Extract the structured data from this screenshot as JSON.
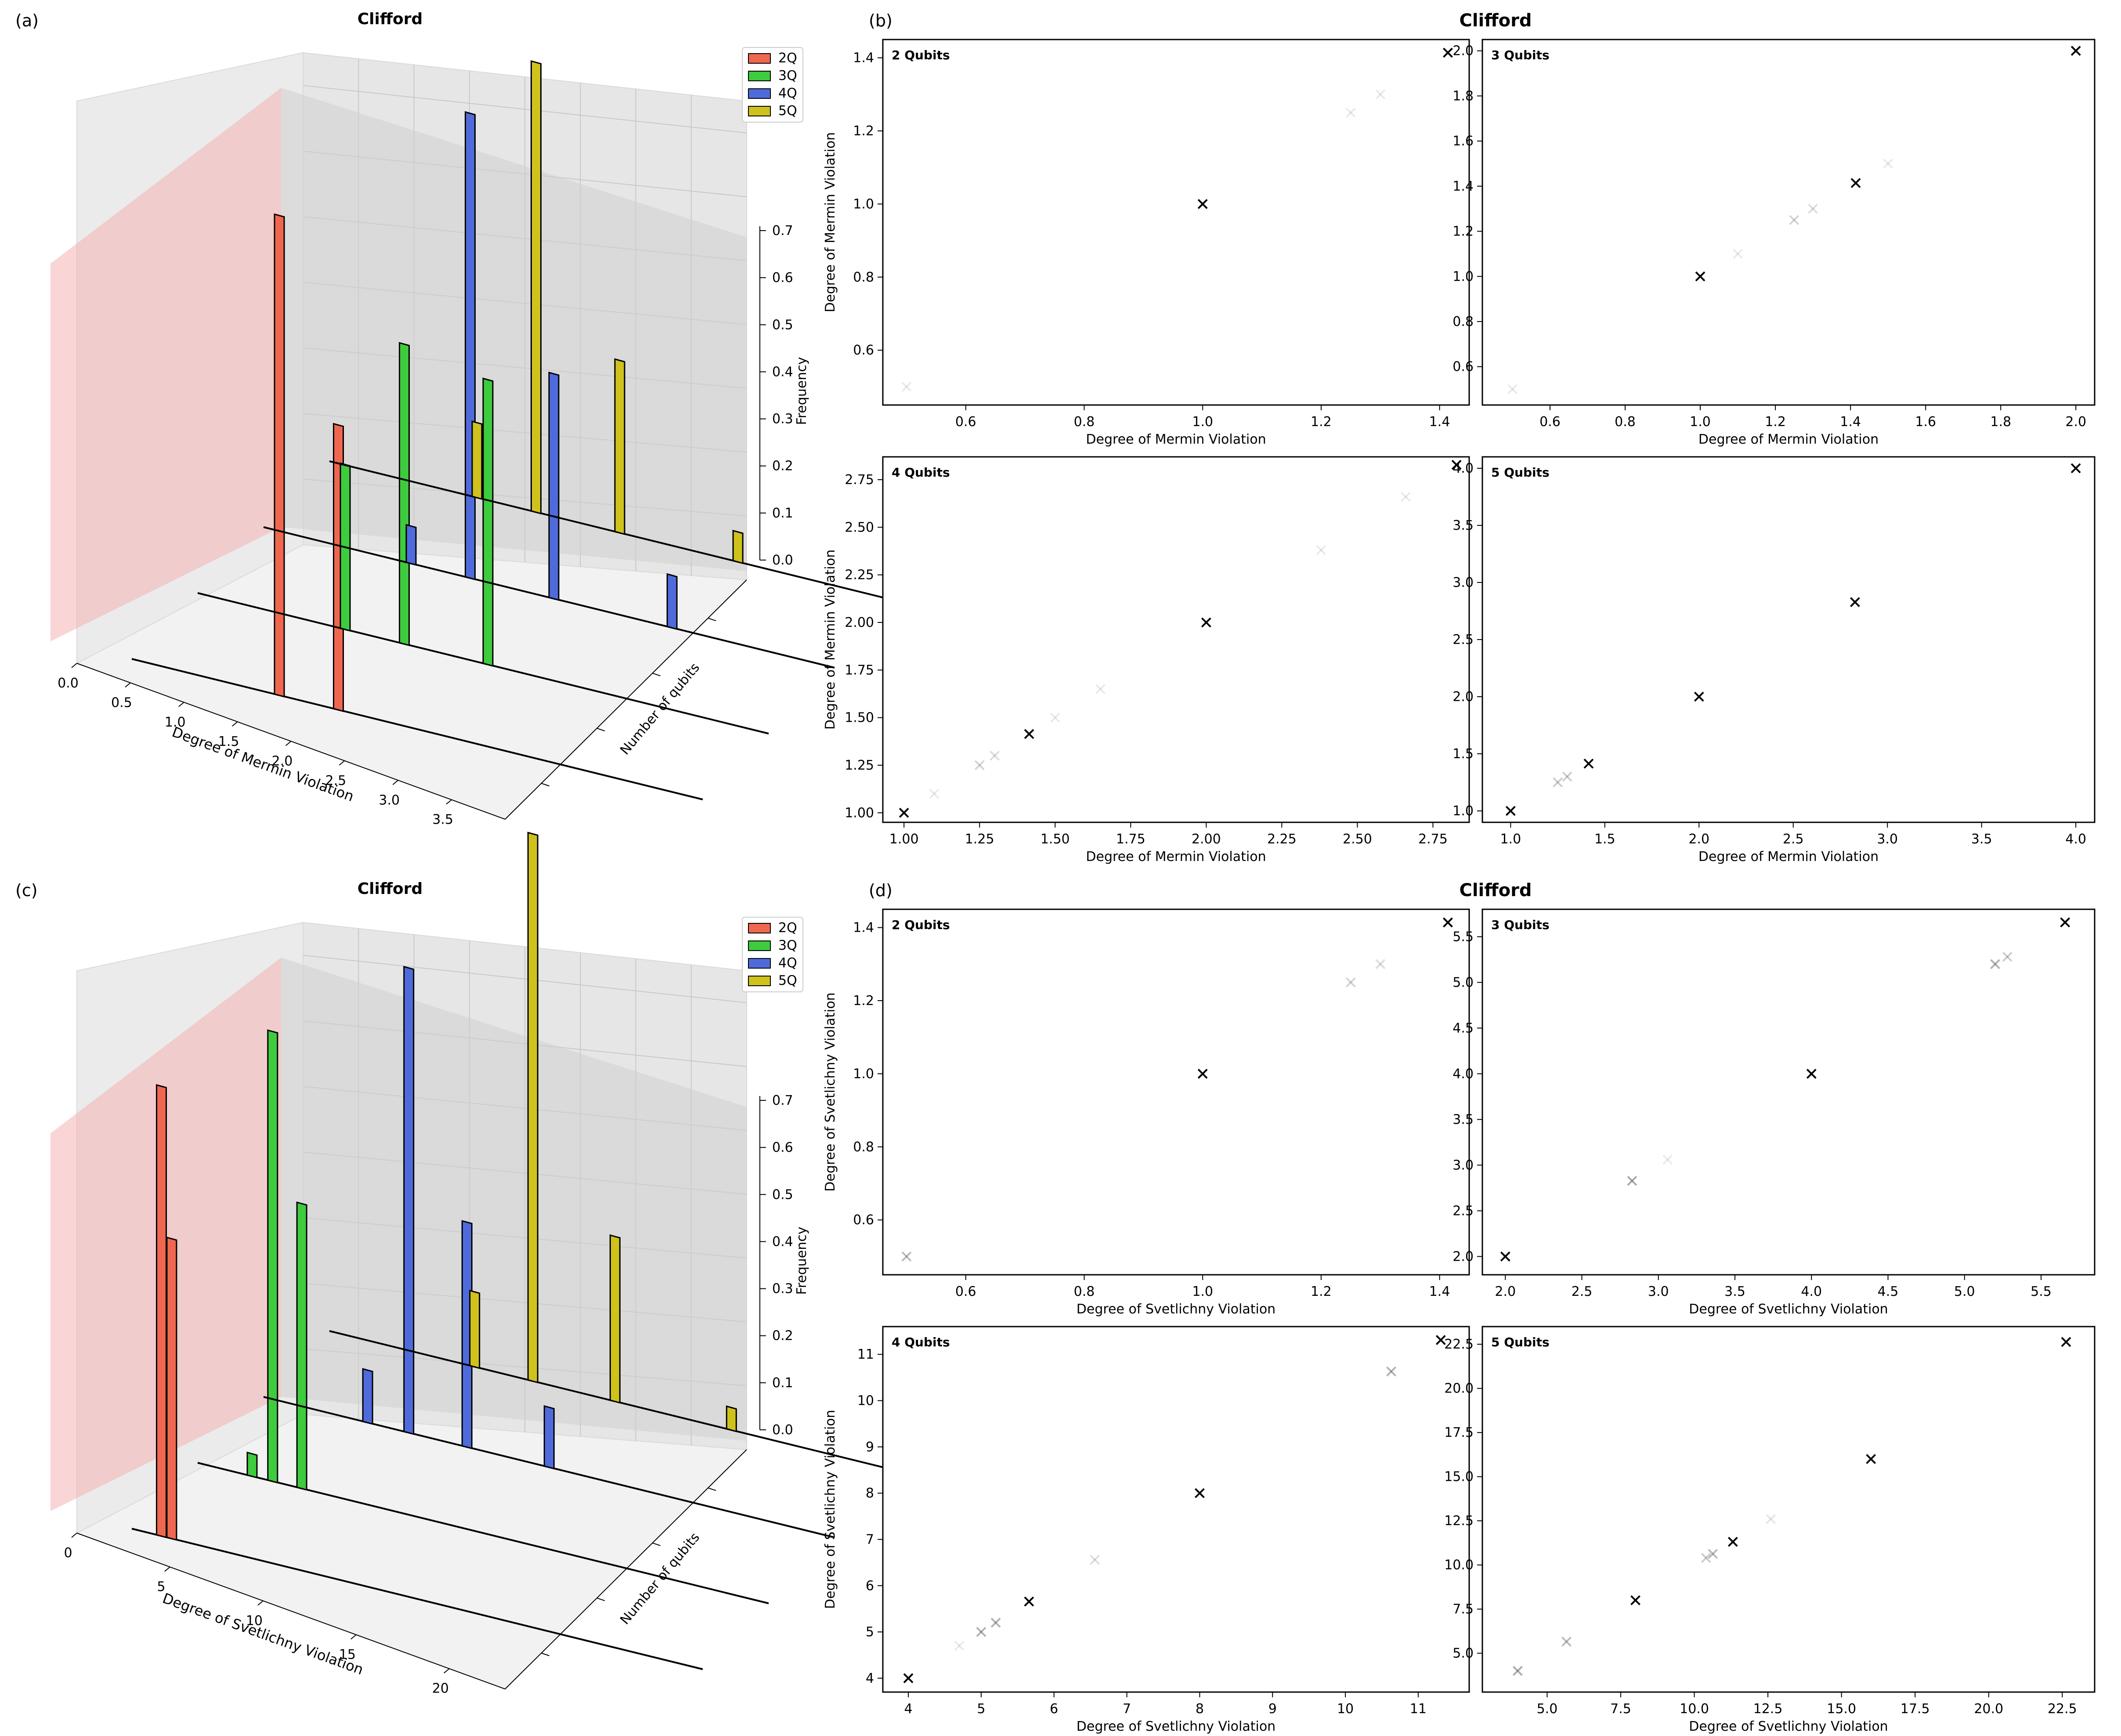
{
  "colors": {
    "q2": "#f0674f",
    "q3": "#3ecb3e",
    "q4": "#4f6bdb",
    "q5": "#cfc21c",
    "classical_plane": "#f4b2b2",
    "pane": "#f2f2f2",
    "shadow": "#cfcfcf"
  },
  "chart_data": [
    {
      "panel": "(a)",
      "type": "bar3d",
      "title": "Clifford",
      "xlabel": "Degree of Mermin Violation",
      "ylabel": "Number of qubits",
      "zlabel": "Frequency",
      "xlim": [
        0,
        4
      ],
      "zlim": [
        0,
        0.75
      ],
      "x_ticks": [
        "0.0",
        "0.5",
        "1.0",
        "1.5",
        "2.0",
        "2.5",
        "3.0",
        "3.5"
      ],
      "z_ticks": [
        "0.0",
        "0.1",
        "0.2",
        "0.3",
        "0.4",
        "0.5",
        "0.6",
        "0.7"
      ],
      "legend": [
        "2Q",
        "3Q",
        "4Q",
        "5Q"
      ],
      "classical_bound": 1.0,
      "series": [
        {
          "name": "2Q",
          "x": [
            1.0,
            1.414
          ],
          "values": [
            0.64,
            0.38
          ]
        },
        {
          "name": "3Q",
          "x": [
            1.0,
            1.414,
            2.0
          ],
          "values": [
            0.22,
            0.4,
            0.38
          ]
        },
        {
          "name": "4Q",
          "x": [
            1.0,
            1.414,
            2.0,
            2.828
          ],
          "values": [
            0.05,
            0.62,
            0.3,
            0.07
          ]
        },
        {
          "name": "5Q",
          "x": [
            1.0,
            1.414,
            2.0,
            2.828,
            4.0
          ],
          "values": [
            0.1,
            0.6,
            0.23,
            0.04,
            0.01
          ]
        }
      ]
    },
    {
      "panel": "(b)",
      "type": "scatter",
      "title": "Clifford",
      "subplots": [
        {
          "label": "2 Qubits",
          "xlabel": "Degree of Mermin Violation",
          "ylabel": "Degree of Mermin Violation",
          "xlim": [
            0.46,
            1.45
          ],
          "ylim": [
            0.45,
            1.45
          ],
          "x_ticks": [
            "0.6",
            "0.8",
            "1.0",
            "1.2",
            "1.4"
          ],
          "y_ticks": [
            "0.6",
            "0.8",
            "1.0",
            "1.2",
            "1.4"
          ],
          "points": [
            [
              0.5,
              0.5,
              0.1
            ],
            [
              1.0,
              1.0,
              1.0
            ],
            [
              1.25,
              1.25,
              0.08
            ],
            [
              1.3,
              1.3,
              0.06
            ],
            [
              1.414,
              1.414,
              1.0
            ]
          ]
        },
        {
          "label": "3 Qubits",
          "xlabel": "Degree of Mermin Violation",
          "ylabel": "",
          "xlim": [
            0.42,
            2.05
          ],
          "ylim": [
            0.43,
            2.05
          ],
          "x_ticks": [
            "0.6",
            "0.8",
            "1.0",
            "1.2",
            "1.4",
            "1.6",
            "1.8",
            "2.0"
          ],
          "y_ticks": [
            "0.6",
            "0.8",
            "1.0",
            "1.2",
            "1.4",
            "1.6",
            "1.8",
            "2.0"
          ],
          "points": [
            [
              0.5,
              0.5,
              0.08
            ],
            [
              1.0,
              1.0,
              1.0
            ],
            [
              1.1,
              1.1,
              0.06
            ],
            [
              1.25,
              1.25,
              0.25
            ],
            [
              1.3,
              1.3,
              0.2
            ],
            [
              1.414,
              1.414,
              1.0
            ],
            [
              1.5,
              1.5,
              0.08
            ],
            [
              2.0,
              2.0,
              1.0
            ]
          ]
        },
        {
          "label": "4 Qubits",
          "xlabel": "Degree of Mermin Violation",
          "ylabel": "Degree of Mermin Violation",
          "xlim": [
            0.93,
            2.87
          ],
          "ylim": [
            0.95,
            2.87
          ],
          "x_ticks": [
            "1.00",
            "1.25",
            "1.50",
            "1.75",
            "2.00",
            "2.25",
            "2.50",
            "2.75"
          ],
          "y_ticks": [
            "1.00",
            "1.25",
            "1.50",
            "1.75",
            "2.00",
            "2.25",
            "2.50",
            "2.75"
          ],
          "points": [
            [
              1.0,
              1.0,
              1.0
            ],
            [
              1.1,
              1.1,
              0.06
            ],
            [
              1.25,
              1.25,
              0.25
            ],
            [
              1.3,
              1.3,
              0.2
            ],
            [
              1.414,
              1.414,
              1.0
            ],
            [
              1.5,
              1.5,
              0.08
            ],
            [
              1.65,
              1.65,
              0.05
            ],
            [
              2.0,
              2.0,
              1.0
            ],
            [
              2.38,
              2.38,
              0.05
            ],
            [
              2.66,
              2.66,
              0.05
            ],
            [
              2.828,
              2.828,
              1.0
            ]
          ]
        },
        {
          "label": "5 Qubits",
          "xlabel": "Degree of Mermin Violation",
          "ylabel": "",
          "xlim": [
            0.85,
            4.1
          ],
          "ylim": [
            0.9,
            4.1
          ],
          "x_ticks": [
            "1.0",
            "1.5",
            "2.0",
            "2.5",
            "3.0",
            "3.5",
            "4.0"
          ],
          "y_ticks": [
            "1.0",
            "1.5",
            "2.0",
            "2.5",
            "3.0",
            "3.5",
            "4.0"
          ],
          "points": [
            [
              1.0,
              1.0,
              1.0
            ],
            [
              1.25,
              1.25,
              0.3
            ],
            [
              1.3,
              1.3,
              0.3
            ],
            [
              1.414,
              1.414,
              1.0
            ],
            [
              2.0,
              2.0,
              1.0
            ],
            [
              2.828,
              2.828,
              1.0
            ],
            [
              4.0,
              4.0,
              1.0
            ]
          ]
        }
      ]
    },
    {
      "panel": "(c)",
      "type": "bar3d",
      "title": "Clifford",
      "xlabel": "Degree of Svetlichny Violation",
      "ylabel": "Number of qubits",
      "zlabel": "Frequency",
      "xlim": [
        0,
        23
      ],
      "zlim": [
        0,
        0.75
      ],
      "x_ticks": [
        "0",
        "5",
        "10",
        "15",
        "20"
      ],
      "z_ticks": [
        "0.0",
        "0.1",
        "0.2",
        "0.3",
        "0.4",
        "0.5",
        "0.6",
        "0.7"
      ],
      "legend": [
        "2Q",
        "3Q",
        "4Q",
        "5Q"
      ],
      "classical_bound": 11.3,
      "series": [
        {
          "name": "2Q",
          "x": [
            1.0,
            1.414
          ],
          "values": [
            0.6,
            0.4
          ]
        },
        {
          "name": "3Q",
          "x": [
            2.0,
            2.828,
            4.0
          ],
          "values": [
            0.03,
            0.6,
            0.38
          ]
        },
        {
          "name": "4Q",
          "x": [
            4.0,
            5.657,
            8.0,
            11.31
          ],
          "values": [
            0.07,
            0.62,
            0.3,
            0.08
          ]
        },
        {
          "name": "5Q",
          "x": [
            5.657,
            8.0,
            11.31,
            16.0,
            22.63
          ],
          "values": [
            0.1,
            0.73,
            0.22,
            0.03,
            0.01
          ]
        }
      ]
    },
    {
      "panel": "(d)",
      "type": "scatter",
      "title": "Clifford",
      "subplots": [
        {
          "label": "2 Qubits",
          "xlabel": "Degree of Svetlichny Violation",
          "ylabel": "Degree of Svetlichny Violation",
          "xlim": [
            0.46,
            1.45
          ],
          "ylim": [
            0.45,
            1.45
          ],
          "x_ticks": [
            "0.6",
            "0.8",
            "1.0",
            "1.2",
            "1.4"
          ],
          "y_ticks": [
            "0.6",
            "0.8",
            "1.0",
            "1.2",
            "1.4"
          ],
          "points": [
            [
              0.5,
              0.5,
              0.4
            ],
            [
              1.0,
              1.0,
              1.0
            ],
            [
              1.25,
              1.25,
              0.25
            ],
            [
              1.3,
              1.3,
              0.2
            ],
            [
              1.414,
              1.414,
              1.0
            ]
          ]
        },
        {
          "label": "3 Qubits",
          "xlabel": "Degree of Svetlichny Violation",
          "ylabel": "",
          "xlim": [
            1.85,
            5.85
          ],
          "ylim": [
            1.8,
            5.8
          ],
          "x_ticks": [
            "2.0",
            "2.5",
            "3.0",
            "3.5",
            "4.0",
            "4.5",
            "5.0",
            "5.5"
          ],
          "y_ticks": [
            "2.0",
            "2.5",
            "3.0",
            "3.5",
            "4.0",
            "4.5",
            "5.0",
            "5.5"
          ],
          "points": [
            [
              2.0,
              2.0,
              1.0
            ],
            [
              2.828,
              2.828,
              0.5
            ],
            [
              3.06,
              3.06,
              0.12
            ],
            [
              4.0,
              4.0,
              1.0
            ],
            [
              5.2,
              5.2,
              0.45
            ],
            [
              5.28,
              5.28,
              0.3
            ],
            [
              5.657,
              5.657,
              1.0
            ]
          ]
        },
        {
          "label": "4 Qubits",
          "xlabel": "Degree of Svetlichny Violation",
          "ylabel": "Degree of Svetlichny Violation",
          "xlim": [
            3.65,
            11.7
          ],
          "ylim": [
            3.7,
            11.6
          ],
          "x_ticks": [
            "4",
            "5",
            "6",
            "7",
            "8",
            "9",
            "10",
            "11"
          ],
          "y_ticks": [
            "4",
            "5",
            "6",
            "7",
            "8",
            "9",
            "10",
            "11"
          ],
          "points": [
            [
              4.0,
              4.0,
              1.0
            ],
            [
              4.7,
              4.7,
              0.1
            ],
            [
              5.0,
              5.0,
              0.45
            ],
            [
              5.2,
              5.2,
              0.45
            ],
            [
              5.657,
              5.657,
              1.0
            ],
            [
              6.56,
              6.56,
              0.2
            ],
            [
              8.0,
              8.0,
              1.0
            ],
            [
              10.63,
              10.63,
              0.45
            ],
            [
              11.31,
              11.31,
              1.0
            ]
          ]
        },
        {
          "label": "5 Qubits",
          "xlabel": "Degree of Svetlichny Violation",
          "ylabel": "",
          "xlim": [
            2.8,
            23.6
          ],
          "ylim": [
            2.8,
            23.5
          ],
          "x_ticks": [
            "5.0",
            "7.5",
            "10.0",
            "12.5",
            "15.0",
            "17.5",
            "20.0",
            "22.5"
          ],
          "y_ticks": [
            "5.0",
            "7.5",
            "10.0",
            "12.5",
            "15.0",
            "17.5",
            "20.0",
            "22.5"
          ],
          "points": [
            [
              4.0,
              4.0,
              0.5
            ],
            [
              5.657,
              5.657,
              0.4
            ],
            [
              8.0,
              8.0,
              1.0
            ],
            [
              10.4,
              10.4,
              0.3
            ],
            [
              10.63,
              10.63,
              0.4
            ],
            [
              11.31,
              11.31,
              1.0
            ],
            [
              12.6,
              12.6,
              0.15
            ],
            [
              16.0,
              16.0,
              1.0
            ],
            [
              22.63,
              22.63,
              1.0
            ]
          ]
        }
      ]
    }
  ]
}
